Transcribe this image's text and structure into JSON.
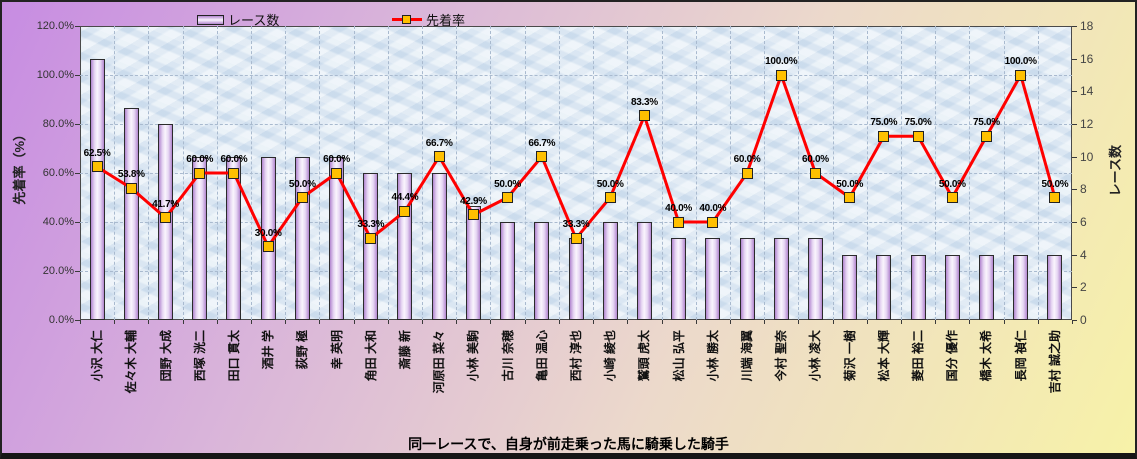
{
  "chart_data": {
    "type": "bar",
    "subtype": "combo-bar-line-dual-axis",
    "title": "同一レースで、自身が前走乗った馬に騎乗した騎手",
    "title_position": "bottom",
    "legend_position": "top",
    "grid": true,
    "categories": [
      "小沢 大仁",
      "佐々木 大輔",
      "団野 大成",
      "西塚 洸二",
      "田口 貫太",
      "酒井 学",
      "荻野 極",
      "幸 英明",
      "角田 大和",
      "斎藤 新",
      "河原田 菜々",
      "小林 美駒",
      "古川 奈穂",
      "亀田 温心",
      "西村 淳也",
      "小崎 綾也",
      "鷲頭 虎太",
      "松山 弘平",
      "小林 勝太",
      "川端 海翼",
      "今村 聖奈",
      "小林 凌大",
      "菊沢 一樹",
      "松本 大輝",
      "菱田 裕二",
      "国分 優作",
      "橋木 太希",
      "長岡 禎仁",
      "吉村 誠之助"
    ],
    "series": [
      {
        "name": "レース数",
        "type": "bar",
        "axis": "right",
        "values": [
          16,
          13,
          12,
          10,
          10,
          10,
          10,
          10,
          9,
          9,
          9,
          7,
          6,
          6,
          5,
          6,
          6,
          5,
          5,
          5,
          5,
          5,
          4,
          4,
          4,
          4,
          4,
          4,
          4
        ]
      },
      {
        "name": "先着率",
        "type": "line",
        "axis": "left",
        "values": [
          62.5,
          53.8,
          41.7,
          60,
          60,
          30,
          50,
          60,
          33.3,
          44.4,
          66.7,
          42.9,
          50,
          66.7,
          33.3,
          50,
          83.3,
          40,
          40,
          60,
          100,
          60,
          50,
          75,
          75,
          50,
          75,
          100,
          50
        ],
        "labels": [
          "62.5%",
          "53.8%",
          "41.7%",
          "60.0%",
          "60.0%",
          "30.0%",
          "50.0%",
          "60.0%",
          "33.3%",
          "44.4%",
          "66.7%",
          "42.9%",
          "50.0%",
          "66.7%",
          "33.3%",
          "50.0%",
          "83.3%",
          "40.0%",
          "40.0%",
          "60.0%",
          "100.0%",
          "60.0%",
          "50.0%",
          "75.0%",
          "75.0%",
          "50.0%",
          "75.0%",
          "100.0%",
          "50.0%"
        ]
      }
    ],
    "left_axis": {
      "title": "先着率（%）",
      "min": 0,
      "max": 120,
      "step": 20,
      "tick_labels": [
        "0.0%",
        "20.0%",
        "40.0%",
        "60.0%",
        "80.0%",
        "100.0%",
        "120.0%"
      ]
    },
    "right_axis": {
      "title": "レース数",
      "min": 0,
      "max": 18,
      "step": 2,
      "tick_labels": [
        "0",
        "2",
        "4",
        "6",
        "8",
        "10",
        "12",
        "14",
        "16",
        "18"
      ]
    },
    "legend": [
      {
        "label": "レース数",
        "swatch": "bar"
      },
      {
        "label": "先着率",
        "swatch": "line-marker"
      }
    ],
    "colors": {
      "line": "#ff0000",
      "marker_fill": "#ffc000",
      "marker_border": "#222222",
      "bar_fill_edge": "#b286cf",
      "bar_fill_center": "#faf4fd",
      "bar_border": "#2b2b2b",
      "plot_background": "#dde9f4",
      "page_background_top_left": "#c78ce2",
      "page_background_bottom_right": "#f7f2a8",
      "gridline": "#a9bacf"
    }
  }
}
